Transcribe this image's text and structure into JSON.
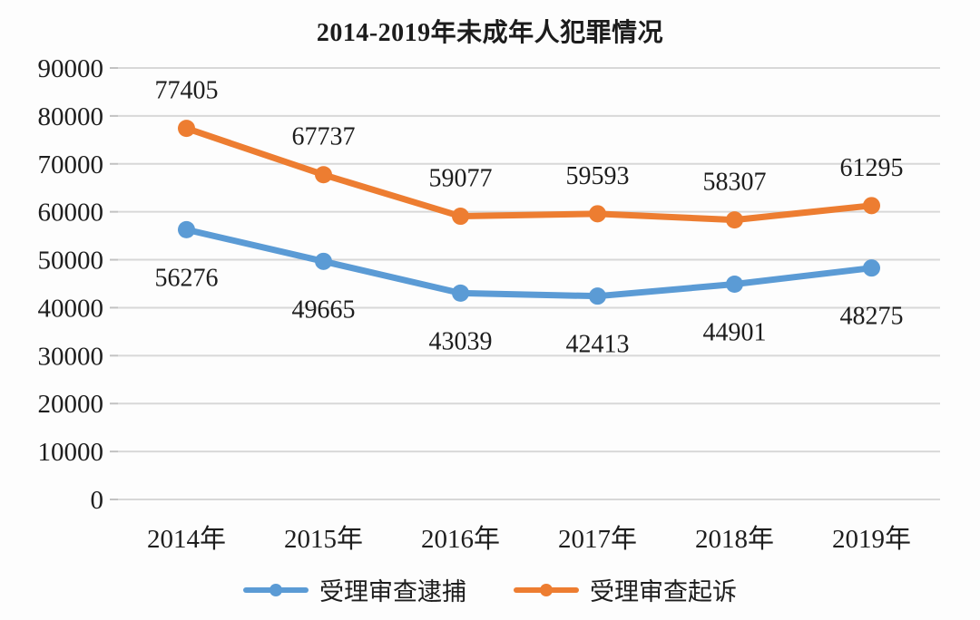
{
  "title": "2014-2019年未成年人犯罪情况",
  "colors": {
    "series_blue": "#5B9BD5",
    "series_orange": "#ED7D31",
    "gridline": "#d8d8d8",
    "tick": "#c2c2c2",
    "text": "#1d1d1d",
    "background": "#fdfdfd"
  },
  "chart_data": {
    "type": "line",
    "title": "2014-2019年未成年人犯罪情况",
    "categories": [
      "2014年",
      "2015年",
      "2016年",
      "2017年",
      "2018年",
      "2019年"
    ],
    "series": [
      {
        "name": "受理审查逮捕",
        "color": "#5B9BD5",
        "values": [
          56276,
          49665,
          43039,
          42413,
          44901,
          48275
        ],
        "label_side": "below"
      },
      {
        "name": "受理审查起诉",
        "color": "#ED7D31",
        "values": [
          77405,
          67737,
          59077,
          59593,
          58307,
          61295
        ],
        "label_side": "above"
      }
    ],
    "xlabel": "",
    "ylabel": "",
    "ylim": [
      0,
      90000
    ],
    "ytick_step": 10000,
    "ytick_labels": [
      "0",
      "10000",
      "20000",
      "30000",
      "40000",
      "50000",
      "60000",
      "70000",
      "80000",
      "90000"
    ],
    "grid": true,
    "legend_position": "bottom",
    "data_labels": true
  }
}
